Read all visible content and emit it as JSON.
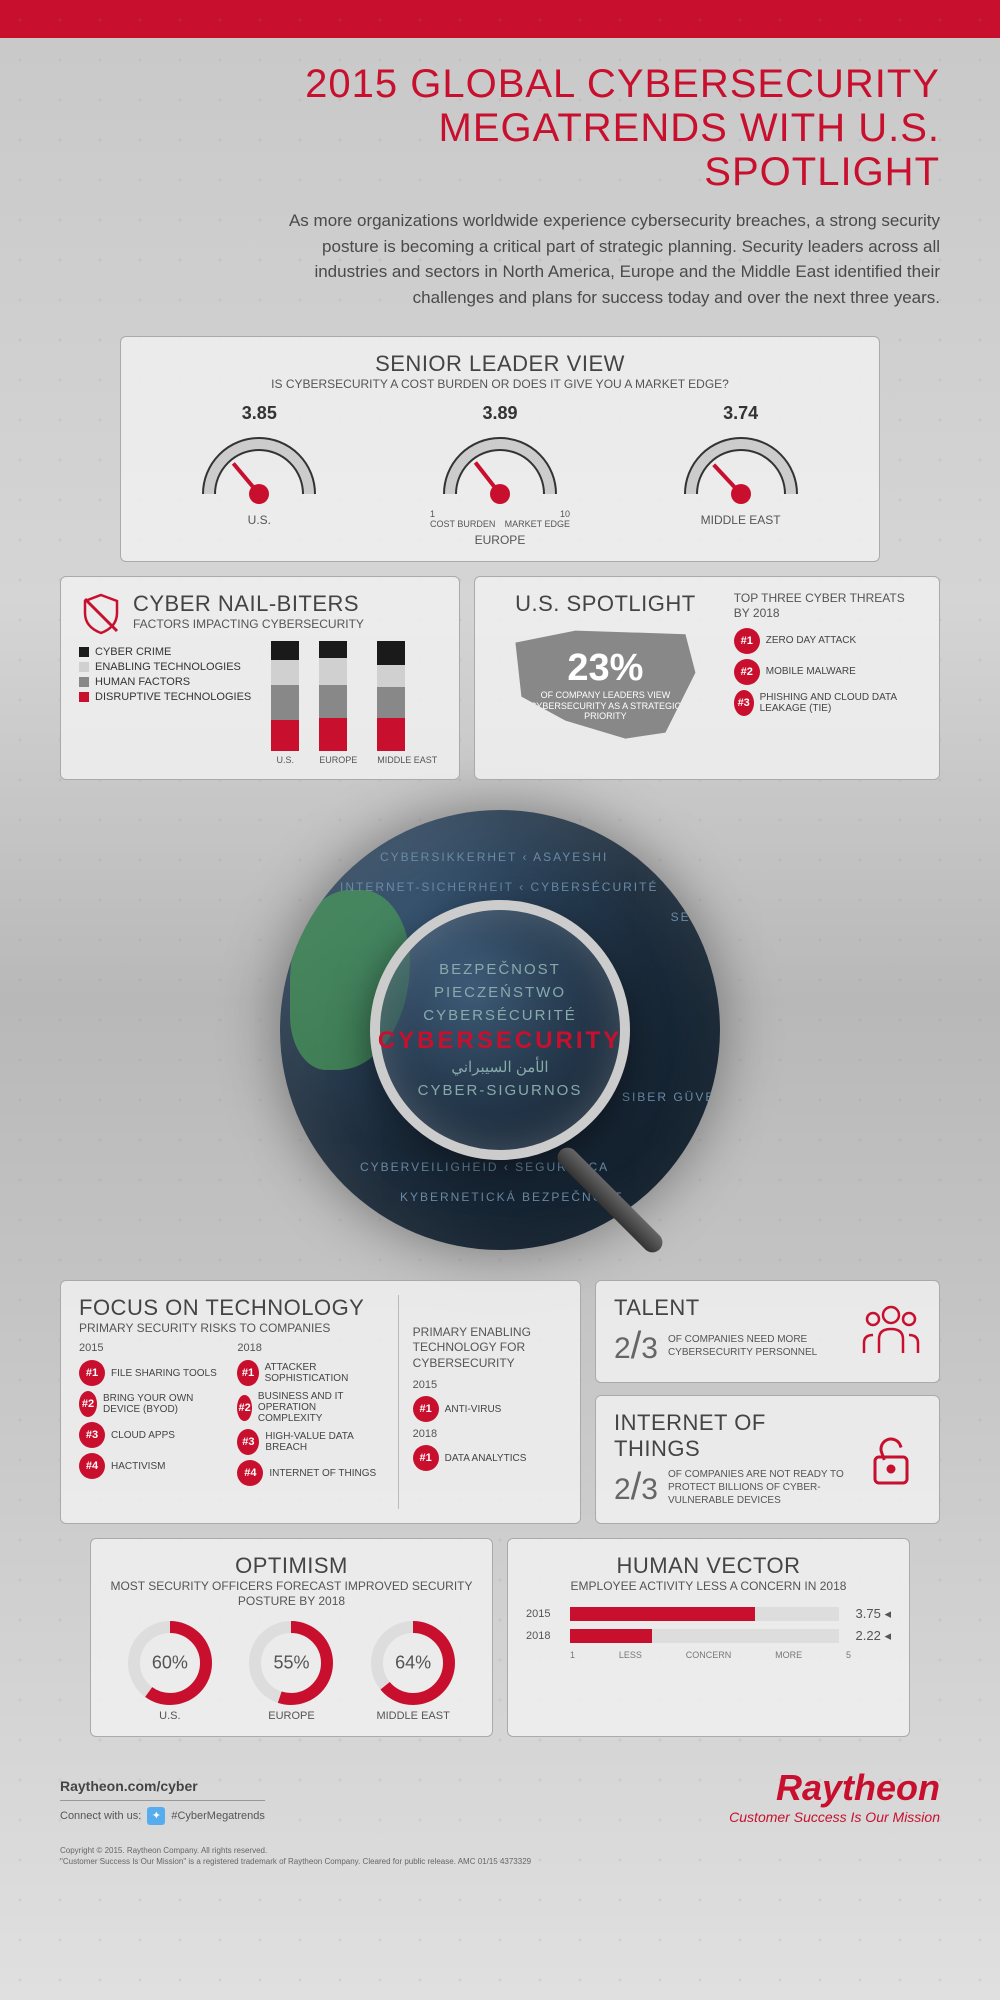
{
  "colors": {
    "brand_red": "#c8102e",
    "dark_gray": "#444444",
    "mid_gray": "#888888",
    "light_gray": "#d0d0d0",
    "black": "#1a1a1a"
  },
  "header": {
    "title_line1": "2015 GLOBAL CYBERSECURITY",
    "title_line2": "MEGATRENDS WITH U.S. SPOTLIGHT",
    "subtitle": "As more organizations worldwide experience cybersecurity breaches, a strong security posture is becoming a critical part of strategic planning. Security leaders across all industries and sectors in North America, Europe and the Middle East identified their challenges and plans for success today and over the next three years."
  },
  "senior_leader": {
    "title": "SENIOR LEADER VIEW",
    "subtitle": "IS CYBERSECURITY A COST BURDEN OR DOES IT GIVE YOU A MARKET EDGE?",
    "scale_min": 1,
    "scale_max": 10,
    "scale_min_label": "COST BURDEN",
    "scale_max_label": "MARKET EDGE",
    "gauges": [
      {
        "label": "U.S.",
        "value": "3.85",
        "angle": -40
      },
      {
        "label": "EUROPE",
        "value": "3.89",
        "angle": -38
      },
      {
        "label": "MIDDLE EAST",
        "value": "3.74",
        "angle": -43
      }
    ]
  },
  "nail_biters": {
    "title": "CYBER NAIL-BITERS",
    "subtitle": "FACTORS IMPACTING CYBERSECURITY",
    "legend": [
      {
        "label": "CYBER CRIME",
        "color": "#1a1a1a"
      },
      {
        "label": "ENABLING TECHNOLOGIES",
        "color": "#d0d0d0"
      },
      {
        "label": "HUMAN FACTORS",
        "color": "#888888"
      },
      {
        "label": "DISRUPTIVE TECHNOLOGIES",
        "color": "#c8102e"
      }
    ],
    "bars": [
      {
        "label": "U.S.",
        "segments": [
          18,
          22,
          32,
          28
        ]
      },
      {
        "label": "EUROPE",
        "segments": [
          16,
          24,
          30,
          30
        ]
      },
      {
        "label": "MIDDLE EAST",
        "segments": [
          22,
          20,
          28,
          30
        ]
      }
    ]
  },
  "spotlight": {
    "title": "U.S. SPOTLIGHT",
    "stat_value": "23%",
    "stat_label": "OF COMPANY LEADERS VIEW CYBERSECURITY AS A STRATEGIC PRIORITY",
    "threats_title": "TOP THREE CYBER THREATS BY 2018",
    "threats": [
      {
        "rank": "#1",
        "label": "ZERO DAY ATTACK"
      },
      {
        "rank": "#2",
        "label": "MOBILE MALWARE"
      },
      {
        "rank": "#3",
        "label": "PHISHING AND CLOUD DATA LEAKAGE (TIE)"
      }
    ]
  },
  "globe": {
    "main_word": "CYBERSECURITY",
    "words": [
      "BEZPEČNOST",
      "PIECZEŃSTWO",
      "CYBERSÉCURITÉ",
      "الأمن السيبراني",
      "CYBER-SIGURNOS",
      "KYBER"
    ]
  },
  "focus": {
    "title": "FOCUS ON TECHNOLOGY",
    "col1_title": "PRIMARY SECURITY RISKS TO COMPANIES",
    "year1": "2015",
    "risks_2015": [
      {
        "rank": "#1",
        "label": "FILE SHARING TOOLS"
      },
      {
        "rank": "#2",
        "label": "BRING YOUR OWN DEVICE (BYOD)"
      },
      {
        "rank": "#3",
        "label": "CLOUD APPS"
      },
      {
        "rank": "#4",
        "label": "HACTIVISM"
      }
    ],
    "year2": "2018",
    "risks_2018": [
      {
        "rank": "#1",
        "label": "ATTACKER SOPHISTICATION"
      },
      {
        "rank": "#2",
        "label": "BUSINESS AND IT OPERATION COMPLEXITY"
      },
      {
        "rank": "#3",
        "label": "HIGH-VALUE DATA BREACH"
      },
      {
        "rank": "#4",
        "label": "INTERNET OF THINGS"
      }
    ],
    "col3_title": "PRIMARY ENABLING TECHNOLOGY FOR CYBERSECURITY",
    "enabling": [
      {
        "year": "2015",
        "rank": "#1",
        "label": "ANTI-VIRUS"
      },
      {
        "year": "2018",
        "rank": "#1",
        "label": "DATA ANALYTICS"
      }
    ]
  },
  "talent": {
    "title": "TALENT",
    "fraction": "2/3",
    "label": "OF COMPANIES NEED MORE CYBERSECURITY PERSONNEL"
  },
  "iot": {
    "title": "INTERNET OF THINGS",
    "fraction": "2/3",
    "label": "OF COMPANIES ARE NOT READY TO PROTECT BILLIONS OF CYBER-VULNERABLE DEVICES"
  },
  "optimism": {
    "title": "OPTIMISM",
    "subtitle": "MOST SECURITY OFFICERS FORECAST IMPROVED SECURITY POSTURE BY 2018",
    "donuts": [
      {
        "label": "U.S.",
        "value": 60,
        "text": "60%"
      },
      {
        "label": "EUROPE",
        "value": 55,
        "text": "55%"
      },
      {
        "label": "MIDDLE EAST",
        "value": 64,
        "text": "64%"
      }
    ]
  },
  "human_vector": {
    "title": "HUMAN VECTOR",
    "subtitle": "EMPLOYEE ACTIVITY LESS A CONCERN IN 2018",
    "scale_min": 1,
    "scale_max": 5,
    "scale_min_label": "LESS",
    "scale_center_label": "CONCERN",
    "scale_max_label": "MORE",
    "bars": [
      {
        "year": "2015",
        "value": 3.75,
        "text": "3.75"
      },
      {
        "year": "2018",
        "value": 2.22,
        "text": "2.22"
      }
    ]
  },
  "footer": {
    "url": "Raytheon.com/cyber",
    "connect_label": "Connect with us:",
    "hashtag": "#CyberMegatrends",
    "logo": "Raytheon",
    "tagline": "Customer Success Is Our Mission",
    "copyright1": "Copyright © 2015. Raytheon Company. All rights reserved.",
    "copyright2": "\"Customer Success Is Our Mission\" is a registered trademark of Raytheon Company. Cleared for public release. AMC 01/15 4373329"
  }
}
